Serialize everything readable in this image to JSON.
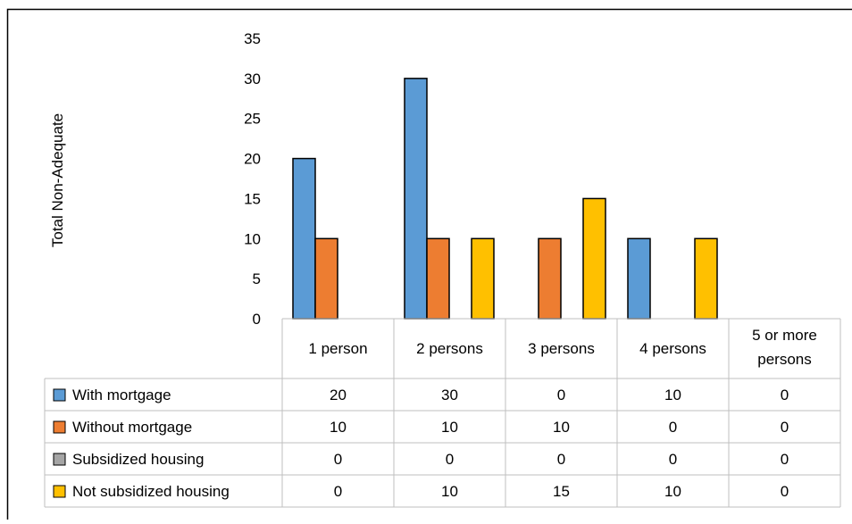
{
  "chart_data": {
    "type": "bar",
    "title": "",
    "ylabel": "Total Non-Adequate",
    "xlabel": "",
    "categories": [
      "1 person",
      "2 persons",
      "3 persons",
      "4 persons",
      "5 or more persons"
    ],
    "ylim": [
      0,
      35
    ],
    "ytick_labels": [
      "0",
      "5",
      "10",
      "15",
      "20",
      "25",
      "30",
      "35"
    ],
    "grid": false,
    "legend": "data-table",
    "series": [
      {
        "name": "With mortgage",
        "color": "#5B9BD5",
        "values": [
          20,
          30,
          0,
          10,
          0
        ],
        "labels": [
          "20",
          "30",
          "0",
          "10",
          "0"
        ]
      },
      {
        "name": "Without mortgage",
        "color": "#ED7D31",
        "values": [
          10,
          10,
          10,
          0,
          0
        ],
        "labels": [
          "10",
          "10",
          "10",
          "0",
          "0"
        ]
      },
      {
        "name": "Subsidized housing",
        "color": "#A5A5A5",
        "values": [
          0,
          0,
          0,
          0,
          0
        ],
        "labels": [
          "0",
          "0",
          "0",
          "0",
          "0"
        ]
      },
      {
        "name": "Not subsidized housing",
        "color": "#FFC000",
        "values": [
          0,
          10,
          15,
          10,
          0
        ],
        "labels": [
          "0",
          "10",
          "15",
          "10",
          "0"
        ]
      }
    ]
  }
}
